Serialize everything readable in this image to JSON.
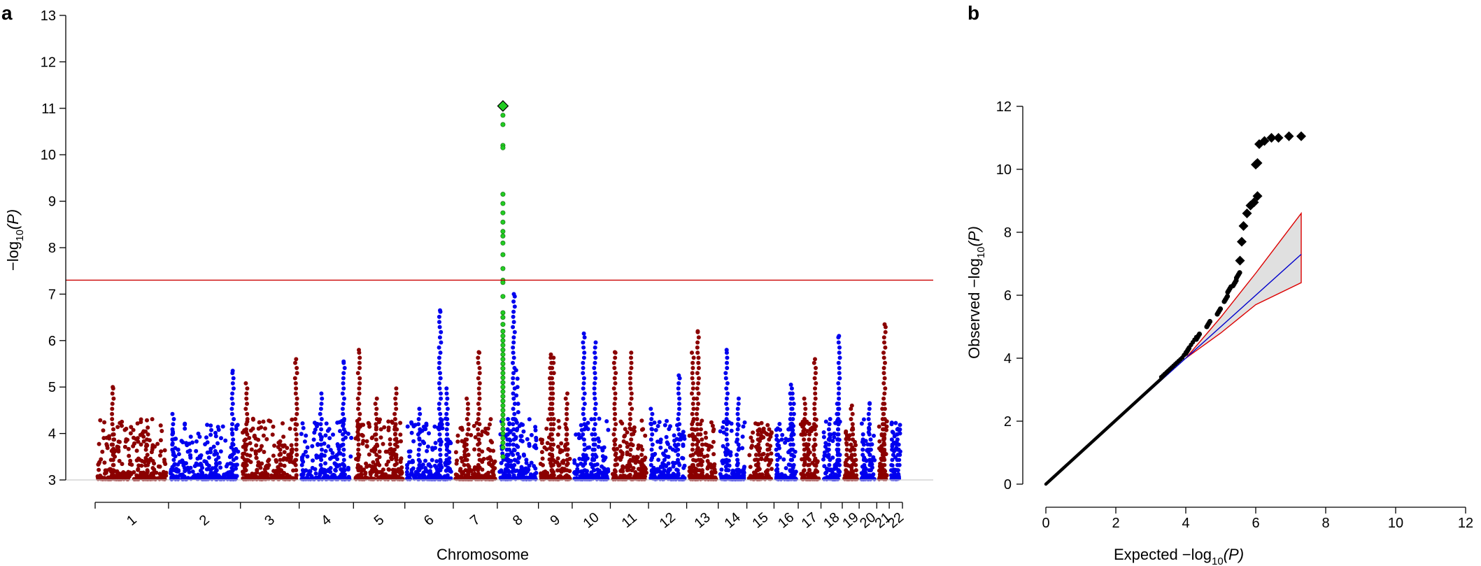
{
  "chart_data": [
    {
      "panel": "a",
      "type": "scatter",
      "subtype": "manhattan",
      "ylabel": "-log10(P)",
      "ylabel_base": "−log",
      "ylabel_sub": "10",
      "ylabel_arg": "(P)",
      "xlabel": "Chromosome",
      "ylim": [
        3,
        13
      ],
      "yticks": [
        3,
        4,
        5,
        6,
        7,
        8,
        9,
        10,
        11,
        12,
        13
      ],
      "significance_line": 7.3,
      "colors": {
        "odd": "#8b0000",
        "even": "#0000ee",
        "highlight": "#22cc22",
        "line": "#cc0000"
      },
      "chromosomes": [
        {
          "label": "1",
          "peak": 5.0
        },
        {
          "label": "2",
          "peak": 5.35
        },
        {
          "label": "3",
          "peak": 5.6
        },
        {
          "label": "4",
          "peak": 5.55
        },
        {
          "label": "5",
          "peak": 5.8
        },
        {
          "label": "6",
          "peak": 6.65
        },
        {
          "label": "7",
          "peak": 5.75
        },
        {
          "label": "8",
          "peak": 11.05
        },
        {
          "label": "9",
          "peak": 5.7
        },
        {
          "label": "10",
          "peak": 6.15
        },
        {
          "label": "11",
          "peak": 5.75
        },
        {
          "label": "12",
          "peak": 5.25
        },
        {
          "label": "13",
          "peak": 6.2
        },
        {
          "label": "14",
          "peak": 5.8
        },
        {
          "label": "15",
          "peak": 4.2
        },
        {
          "label": "16",
          "peak": 5.05
        },
        {
          "label": "17",
          "peak": 5.6
        },
        {
          "label": "18",
          "peak": 6.1
        },
        {
          "label": "19",
          "peak": 4.6
        },
        {
          "label": "20",
          "peak": 4.65
        },
        {
          "label": "21",
          "peak": 6.35
        },
        {
          "label": "22",
          "peak": 4.1
        }
      ],
      "lead_snp": {
        "chromosome": "8",
        "value": 11.05,
        "marker": "diamond"
      },
      "chr8_locus_values": [
        11.05,
        10.85,
        10.65,
        10.2,
        10.15,
        9.15,
        8.95,
        8.75,
        8.55,
        8.35,
        8.25,
        8.1,
        7.85,
        7.55,
        7.3,
        7.25,
        6.95,
        6.6,
        6.5,
        6.35,
        6.2,
        6.1,
        6.0,
        5.9,
        5.8,
        5.7,
        5.6,
        5.5,
        5.4,
        5.3,
        5.2,
        5.1,
        5.0,
        4.9,
        4.8,
        4.7,
        4.6,
        4.5,
        4.4,
        4.3,
        4.2,
        4.1,
        4.0,
        3.9,
        3.8,
        3.7,
        3.5
      ]
    },
    {
      "panel": "b",
      "type": "scatter",
      "subtype": "qq",
      "xlabel": "Expected -log10(P)",
      "ylabel": "Observed -log10(P)",
      "xlabel_base": "Expected −log",
      "ylabel_base": "Observed −log",
      "label_sub": "10",
      "label_arg": "(P)",
      "xlim": [
        0,
        12
      ],
      "ylim": [
        0,
        12
      ],
      "xticks": [
        0,
        2,
        4,
        6,
        8,
        10,
        12
      ],
      "yticks": [
        0,
        2,
        4,
        6,
        8,
        10,
        12
      ],
      "expected_line_end": 7.3,
      "confidence_band": {
        "x": [
          4.0,
          5.0,
          6.0,
          7.3
        ],
        "upper": [
          4.0,
          5.3,
          6.7,
          8.6
        ],
        "lower": [
          4.0,
          4.8,
          5.7,
          6.4
        ]
      },
      "observed_tail": [
        {
          "x": 4.0,
          "y": 4.15
        },
        {
          "x": 4.3,
          "y": 4.6
        },
        {
          "x": 4.6,
          "y": 5.0
        },
        {
          "x": 4.9,
          "y": 5.4
        },
        {
          "x": 5.1,
          "y": 5.8
        },
        {
          "x": 5.2,
          "y": 6.1
        },
        {
          "x": 5.35,
          "y": 6.3
        },
        {
          "x": 5.45,
          "y": 6.55
        },
        {
          "x": 5.55,
          "y": 7.1
        },
        {
          "x": 5.6,
          "y": 7.7
        },
        {
          "x": 5.65,
          "y": 8.2
        },
        {
          "x": 5.75,
          "y": 8.6
        },
        {
          "x": 5.85,
          "y": 8.85
        },
        {
          "x": 5.95,
          "y": 8.95
        },
        {
          "x": 6.05,
          "y": 9.15
        },
        {
          "x": 6.0,
          "y": 10.15
        },
        {
          "x": 6.05,
          "y": 10.2
        },
        {
          "x": 6.1,
          "y": 10.8
        },
        {
          "x": 6.25,
          "y": 10.9
        },
        {
          "x": 6.45,
          "y": 11.0
        },
        {
          "x": 6.65,
          "y": 11.0
        },
        {
          "x": 6.95,
          "y": 11.05
        },
        {
          "x": 7.3,
          "y": 11.05
        }
      ],
      "colors": {
        "points": "#000000",
        "expected": "#0000cc",
        "band_edge": "#dd0000",
        "band_fill": "#e0e0e0"
      }
    }
  ],
  "panels": {
    "a": "a",
    "b": "b"
  }
}
